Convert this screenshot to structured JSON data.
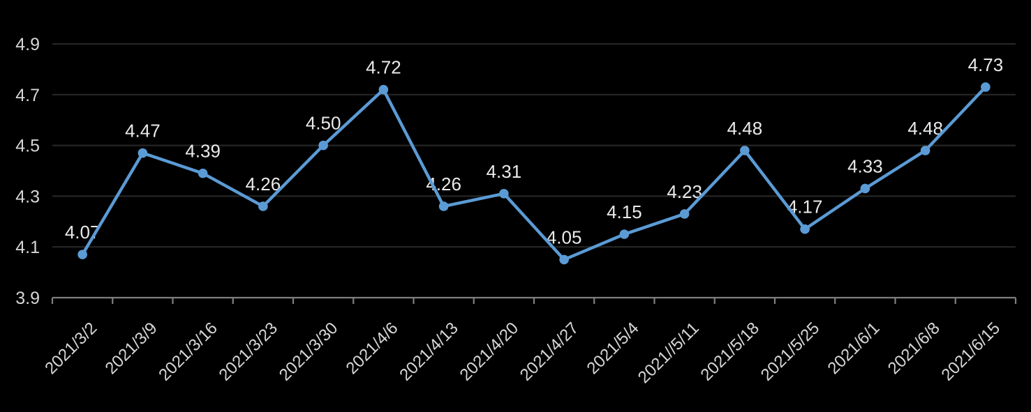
{
  "chart_data": {
    "type": "line",
    "categories": [
      "2021/3/2",
      "2021/3/9",
      "2021/3/16",
      "2021/3/23",
      "2021/3/30",
      "2021/4/6",
      "2021/4/13",
      "2021/4/20",
      "2021/4/27",
      "2021/5/4",
      "2021//5/11",
      "2021/5/18",
      "2021/5/25",
      "2021/6/1",
      "2021/6/8",
      "2021/6/15"
    ],
    "values": [
      4.07,
      4.47,
      4.39,
      4.26,
      4.5,
      4.72,
      4.26,
      4.31,
      4.05,
      4.15,
      4.23,
      4.48,
      4.17,
      4.33,
      4.48,
      4.73
    ],
    "point_labels": [
      "4.07",
      "4.47",
      "4.39",
      "4.26",
      "4.50",
      "4.72",
      "4.26",
      "4.31",
      "4.05",
      "4.15",
      "4.23",
      "4.48",
      "4.17",
      "4.33",
      "4.48",
      "4.73"
    ],
    "title": "",
    "xlabel": "",
    "ylabel": "",
    "ylim": [
      3.9,
      4.9
    ],
    "y_tick_labels": [
      "4.9",
      "4.7",
      "4.5",
      "4.3",
      "4.1",
      "3.9"
    ],
    "grid": true,
    "legend": "none",
    "marker": "circle",
    "data_labels_position": "above",
    "x_label_rotation_deg": 45
  },
  "colors": {
    "background": "#000000",
    "line": "#5B9BD5",
    "marker": "#5B9BD5",
    "gridline": "#262626",
    "axis_line": "#7f7f7f",
    "axis_label": "#d6d6d6",
    "data_label": "#eaeaea"
  }
}
